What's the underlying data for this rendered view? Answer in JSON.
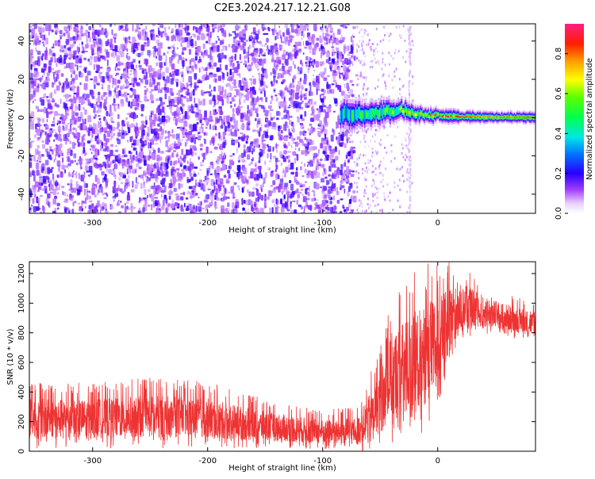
{
  "title": "C2E3.2024.217.12.21.G08",
  "chart_data": [
    {
      "type": "heatmap",
      "xlabel": "Height of straight line (km)",
      "ylabel": "Frequency (Hz)",
      "xlim": [
        -355,
        85
      ],
      "ylim": [
        -50,
        49
      ],
      "xticks": [
        -300,
        -200,
        -100,
        0
      ],
      "yticks": [
        -40,
        -20,
        0,
        20,
        40
      ],
      "colorbar": {
        "label": "Normalized spectral amplitude",
        "range": [
          0.0,
          0.95
        ],
        "ticks": [
          0.0,
          0.2,
          0.4,
          0.6,
          0.8
        ]
      },
      "noise_region_x": [
        -355,
        -72
      ],
      "signal_x_start": -85,
      "signal_center_hz": [
        [
          -85,
          1.5
        ],
        [
          -60,
          2.0
        ],
        [
          -40,
          3.5
        ],
        [
          -30,
          4.0
        ],
        [
          -20,
          2.5
        ],
        [
          -10,
          1.5
        ],
        [
          0,
          1.0
        ],
        [
          20,
          0.5
        ],
        [
          50,
          0.2
        ],
        [
          85,
          0.0
        ]
      ],
      "signal_halfwidth_hz": [
        [
          -85,
          5
        ],
        [
          -60,
          4.5
        ],
        [
          -40,
          4
        ],
        [
          -20,
          3
        ],
        [
          0,
          2.5
        ],
        [
          40,
          2
        ],
        [
          85,
          2
        ]
      ],
      "signal_peak_amplitude": [
        [
          -85,
          0.45
        ],
        [
          -60,
          0.55
        ],
        [
          -40,
          0.65
        ],
        [
          -25,
          0.7
        ],
        [
          -10,
          0.8
        ],
        [
          0,
          0.95
        ],
        [
          10,
          0.9
        ],
        [
          40,
          0.8
        ],
        [
          85,
          0.85
        ]
      ],
      "grid": false
    },
    {
      "type": "line",
      "xlabel": "Height of straight line (km)",
      "ylabel": "SNR (10 * v/v)",
      "xlim": [
        -355,
        85
      ],
      "ylim": [
        0,
        1280
      ],
      "xticks": [
        -300,
        -200,
        -100,
        0
      ],
      "yticks": [
        0,
        200,
        400,
        600,
        800,
        1000,
        1200
      ],
      "series": [
        {
          "color": "#ee3333",
          "envelope_x": [
            -355,
            -300,
            -250,
            -200,
            -150,
            -100,
            -70,
            -60,
            -50,
            -40,
            -30,
            -20,
            -10,
            0,
            10,
            20,
            30,
            50,
            85
          ],
          "envelope_lower": [
            20,
            20,
            20,
            20,
            20,
            10,
            0,
            0,
            20,
            50,
            60,
            80,
            150,
            300,
            560,
            750,
            780,
            780,
            740
          ],
          "envelope_upper": [
            470,
            460,
            500,
            470,
            350,
            280,
            300,
            500,
            700,
            1050,
            1150,
            1230,
            1280,
            1280,
            1280,
            1250,
            1200,
            1100,
            1000
          ]
        }
      ],
      "grid": false
    }
  ]
}
